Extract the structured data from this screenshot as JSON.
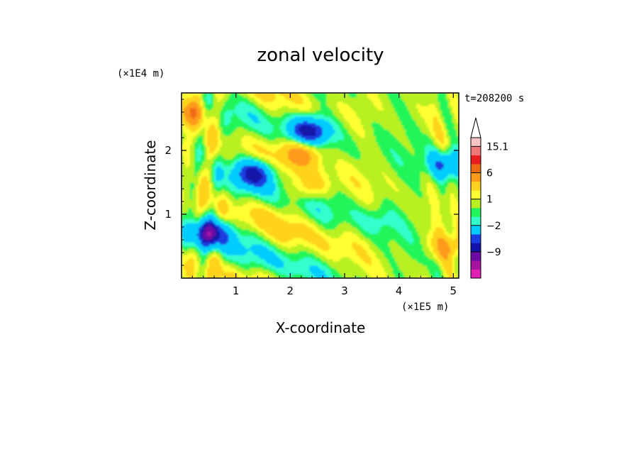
{
  "chart_data": {
    "type": "heatmap",
    "title": "zonal velocity",
    "xlabel": "X-coordinate",
    "ylabel": "Z-coordinate",
    "x_unit": "(×1E5 m)",
    "y_unit": "(×1E4 m)",
    "time_label": "t=208200 s",
    "xlim": [
      0,
      5.1
    ],
    "ylim": [
      0,
      2.9
    ],
    "x_ticks": [
      1,
      2,
      3,
      4,
      5
    ],
    "y_ticks": [
      1,
      2
    ],
    "colorbar": {
      "labels": [
        "15.1",
        "6",
        "1",
        "−2",
        "−9"
      ],
      "label_values": [
        15.1,
        6,
        1,
        -2,
        -9
      ],
      "levels": [
        -14,
        -11,
        -9,
        -7,
        -5,
        -2,
        -1,
        0,
        1,
        2,
        4,
        6,
        9,
        12,
        15.1
      ],
      "colors": [
        "#e21fb5",
        "#a414a0",
        "#6d0aa6",
        "#1212a8",
        "#1a3de0",
        "#00ccff",
        "#33ffcc",
        "#22f55a",
        "#b8f020",
        "#ffff33",
        "#ffd21f",
        "#ff9a1a",
        "#f06a14",
        "#e81e1e",
        "#f07878",
        "#f8c4c4"
      ],
      "extend_max_color": "#ffffff"
    },
    "field_features": [
      {
        "x": 2.35,
        "z": 2.3,
        "value": -8
      },
      {
        "x": 1.35,
        "z": 1.65,
        "value": -7
      },
      {
        "x": 0.5,
        "z": 0.7,
        "value": -9
      },
      {
        "x": 0.15,
        "z": 2.6,
        "value": 5
      },
      {
        "x": 2.25,
        "z": 2.0,
        "value": 5
      },
      {
        "x": 2.3,
        "z": 1.4,
        "value": 3
      },
      {
        "x": 3.6,
        "z": 0.9,
        "value": -1.5
      },
      {
        "x": 2.9,
        "z": 0.55,
        "value": 0.5
      },
      {
        "x": 4.9,
        "z": 0.5,
        "value": 4
      },
      {
        "x": 4.9,
        "z": 1.8,
        "value": -6
      }
    ]
  }
}
